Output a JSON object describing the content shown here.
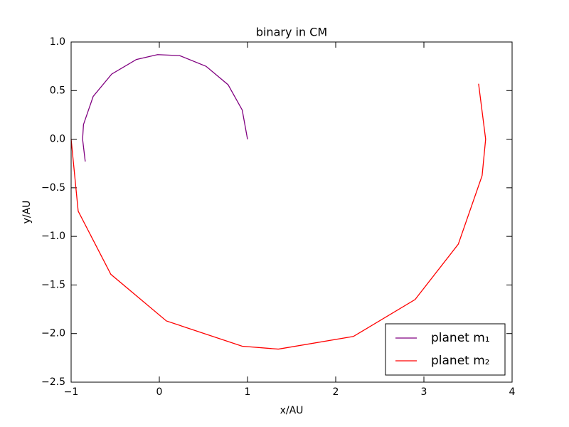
{
  "chart_data": {
    "type": "line",
    "title": "binary in CM",
    "x_label": "x/AU",
    "y_label": "y/AU",
    "xlim": [
      -1,
      4
    ],
    "ylim": [
      -2.5,
      1.0
    ],
    "xticks": [
      {
        "value": -1,
        "label": "−1"
      },
      0,
      1,
      2,
      3,
      4
    ],
    "yticks": [
      {
        "value": 1,
        "label": "1.0"
      },
      0.5,
      {
        "value": 0,
        "label": "0.0"
      },
      {
        "value": -0.5,
        "label": "−0.5"
      },
      {
        "value": -1,
        "label": "−1.0"
      },
      {
        "value": -1.5,
        "label": "−1.5"
      },
      {
        "value": -2,
        "label": "−2.0"
      },
      {
        "value": -2.5,
        "label": "−2.5"
      }
    ],
    "grid": false,
    "legend": "lower right",
    "series": [
      {
        "name": "planet m₁",
        "color": "#800080",
        "x": [
          1.0,
          0.94,
          0.78,
          0.53,
          0.23,
          -0.02,
          -0.26,
          -0.54,
          -0.75,
          -0.86,
          -0.87,
          -0.84
        ],
        "values": [
          0.0,
          0.3,
          0.56,
          0.75,
          0.86,
          0.87,
          0.82,
          0.67,
          0.44,
          0.15,
          0.0,
          -0.23
        ]
      },
      {
        "name": "planet m₂",
        "color": "#ff0000",
        "x": [
          -1.0,
          -0.92,
          -0.55,
          0.08,
          0.94,
          1.35,
          2.2,
          2.9,
          3.39,
          3.66,
          3.7,
          3.62
        ],
        "values": [
          0.0,
          -0.74,
          -1.39,
          -1.87,
          -2.13,
          -2.16,
          -2.03,
          -1.65,
          -1.08,
          -0.375,
          0.0,
          0.57
        ]
      }
    ]
  }
}
